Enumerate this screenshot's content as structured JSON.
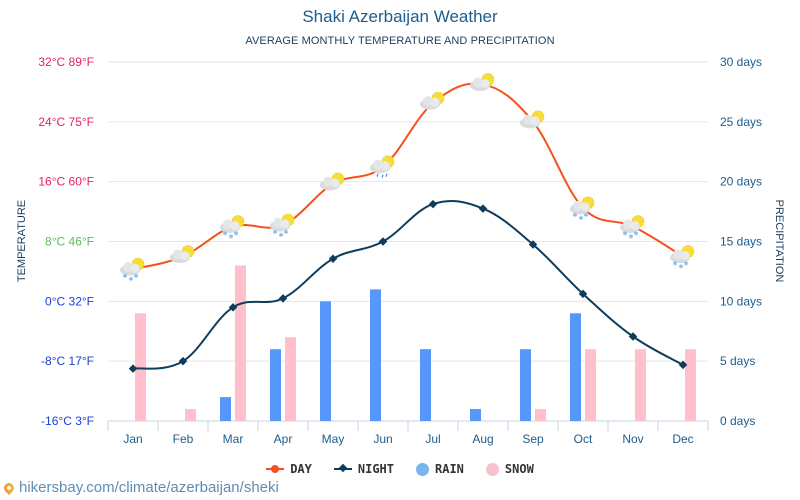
{
  "title": "Shaki Azerbaijan Weather",
  "subtitle": "AVERAGE MONTHLY TEMPERATURE AND PRECIPITATION",
  "footer": {
    "url_text": "hikersbay.com/climate/azerbaijan/sheki",
    "icon": "location-pin-icon"
  },
  "legend": [
    {
      "label": "DAY",
      "color": "#f4511e",
      "marker": "dot"
    },
    {
      "label": "NIGHT",
      "color": "#0e3d5b",
      "marker": "diamond"
    },
    {
      "label": "RAIN",
      "color": "#7ab4ea",
      "marker": "circle"
    },
    {
      "label": "SNOW",
      "color": "#f8c1cd",
      "marker": "circle"
    }
  ],
  "colors": {
    "day": "#f4511e",
    "night": "#0e3d5b",
    "rain": "#5597fb",
    "snow": "#ffc0cb",
    "grid": "#e6e6e6",
    "axis_right": "#1c5d8c",
    "tick_hot": "#e91e63",
    "tick_mild": "#5cb85c",
    "tick_cold": "#1a3fd6",
    "x_label": "#1c5d8c"
  },
  "chart_data": {
    "type": "line+bar",
    "title": "Shaki Azerbaijan Weather",
    "subtitle": "AVERAGE MONTHLY TEMPERATURE AND PRECIPITATION",
    "categories": [
      "Jan",
      "Feb",
      "Mar",
      "Apr",
      "May",
      "Jun",
      "Jul",
      "Aug",
      "Sep",
      "Oct",
      "Nov",
      "Dec"
    ],
    "y_left": {
      "label": "TEMPERATURE",
      "range": [
        -16,
        32
      ],
      "ticks": [
        {
          "value": 32,
          "label": "32°C 89°F",
          "tone": "hot"
        },
        {
          "value": 24,
          "label": "24°C 75°F",
          "tone": "hot"
        },
        {
          "value": 16,
          "label": "16°C 60°F",
          "tone": "hot"
        },
        {
          "value": 8,
          "label": "8°C 46°F",
          "tone": "mild"
        },
        {
          "value": 0,
          "label": "0°C 32°F",
          "tone": "cold"
        },
        {
          "value": -8,
          "label": "-8°C 17°F",
          "tone": "cold"
        },
        {
          "value": -16,
          "label": "-16°C 3°F",
          "tone": "cold"
        }
      ]
    },
    "y_right": {
      "label": "PRECIPITATION",
      "range": [
        0,
        30
      ],
      "ticks": [
        {
          "value": 30,
          "label": "30 days"
        },
        {
          "value": 25,
          "label": "25 days"
        },
        {
          "value": 20,
          "label": "20 days"
        },
        {
          "value": 15,
          "label": "15 days"
        },
        {
          "value": 10,
          "label": "10 days"
        },
        {
          "value": 5,
          "label": "5 days"
        },
        {
          "value": 0,
          "label": "0 days"
        }
      ]
    },
    "grid": true,
    "legend_position": "bottom",
    "series": [
      {
        "name": "DAY",
        "type": "line",
        "axis": "left",
        "unit": "°C",
        "values": [
          4.3,
          6,
          10,
          10.2,
          15.7,
          18,
          26.5,
          29,
          24,
          12.5,
          10,
          6
        ],
        "icons": [
          "snow-cloud",
          "sun-cloud",
          "snow-cloud",
          "snow-cloud",
          "sun-cloud",
          "rain-cloud",
          "sun-cloud",
          "sun-cloud",
          "sun-cloud",
          "snow-cloud",
          "snow-cloud",
          "snow-cloud"
        ]
      },
      {
        "name": "NIGHT",
        "type": "line",
        "axis": "left",
        "unit": "°C",
        "values": [
          -9,
          -8,
          -0.8,
          0.4,
          5.7,
          8,
          13,
          12.4,
          7.6,
          1,
          -4.7,
          -8.5
        ]
      },
      {
        "name": "RAIN",
        "type": "bar",
        "axis": "right",
        "unit": "days",
        "values": [
          0,
          0,
          2,
          6,
          10,
          11,
          6,
          1,
          6,
          9,
          0,
          0
        ]
      },
      {
        "name": "SNOW",
        "type": "bar",
        "axis": "right",
        "unit": "days",
        "values": [
          9,
          1,
          13,
          7,
          0,
          0,
          0,
          0,
          1,
          6,
          6,
          6
        ]
      }
    ]
  }
}
